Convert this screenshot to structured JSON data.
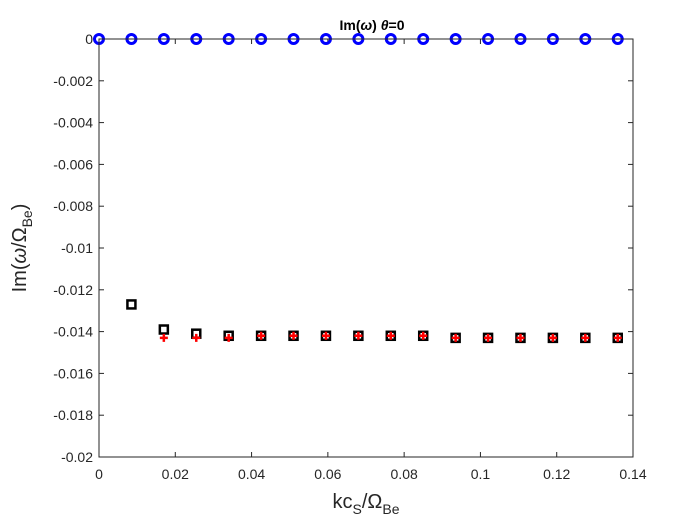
{
  "chart_data": {
    "type": "scatter",
    "title": "Im(ω)  θ=0",
    "xlabel": "kc_S/Ω_Be",
    "ylabel": "Im(ω/Ω_Be)",
    "xlim": [
      0,
      0.14
    ],
    "ylim": [
      -0.02,
      0
    ],
    "xticks": [
      0,
      0.02,
      0.04,
      0.06,
      0.08,
      0.1,
      0.12,
      0.14
    ],
    "xtick_labels": [
      "0",
      "0.02",
      "0.04",
      "0.06",
      "0.08",
      "0.1",
      "0.12",
      "0.14"
    ],
    "yticks": [
      0,
      -0.002,
      -0.004,
      -0.006,
      -0.008,
      -0.01,
      -0.012,
      -0.014,
      -0.016,
      -0.018,
      -0.02
    ],
    "ytick_labels": [
      "0",
      "-0.002",
      "-0.004",
      "-0.006",
      "-0.008",
      "-0.01",
      "-0.012",
      "-0.014",
      "-0.016",
      "-0.018",
      "-0.02"
    ],
    "grid": false,
    "series": [
      {
        "marker": "circle",
        "color": "#0000ff",
        "x": [
          0,
          0.0085,
          0.017,
          0.0255,
          0.034,
          0.0425,
          0.051,
          0.0595,
          0.068,
          0.0765,
          0.085,
          0.0935,
          0.102,
          0.1105,
          0.119,
          0.1275,
          0.136
        ],
        "y": [
          0,
          0,
          0,
          0,
          0,
          0,
          0,
          0,
          0,
          0,
          0,
          0,
          0,
          0,
          0,
          0,
          0
        ]
      },
      {
        "marker": "square",
        "color": "#000000",
        "x": [
          0.0085,
          0.017,
          0.0255,
          0.034,
          0.0425,
          0.051,
          0.0595,
          0.068,
          0.0765,
          0.085,
          0.0935,
          0.102,
          0.1105,
          0.119,
          0.1275,
          0.136
        ],
        "y": [
          -0.0127,
          -0.0139,
          -0.0141,
          -0.0142,
          -0.0142,
          -0.0142,
          -0.0142,
          -0.0142,
          -0.0142,
          -0.0142,
          -0.0143,
          -0.0143,
          -0.0143,
          -0.0143,
          -0.0143,
          -0.0143
        ]
      },
      {
        "marker": "plus",
        "color": "#ff0000",
        "x": [
          0.017,
          0.0255,
          0.034,
          0.0425,
          0.051,
          0.0595,
          0.068,
          0.0765,
          0.085,
          0.0935,
          0.102,
          0.1105,
          0.119,
          0.1275,
          0.136
        ],
        "y": [
          -0.0143,
          -0.0143,
          -0.0143,
          -0.0142,
          -0.0142,
          -0.0142,
          -0.0142,
          -0.0142,
          -0.0142,
          -0.0143,
          -0.0143,
          -0.0143,
          -0.0143,
          -0.0143,
          -0.0143
        ]
      }
    ]
  }
}
